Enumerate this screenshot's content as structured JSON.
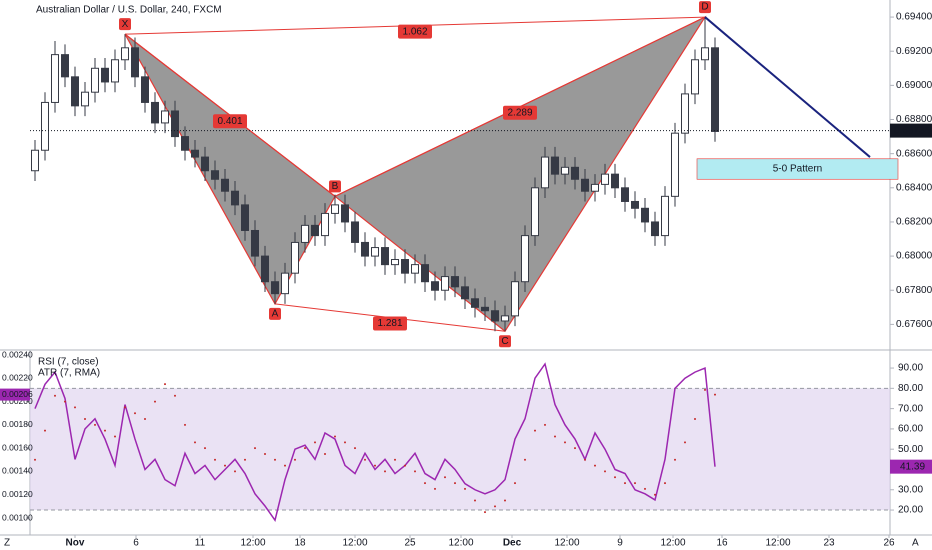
{
  "chart_data": [
    {
      "type": "candlestick",
      "title": "Australian Dollar / U.S. Dollar, 240, FXCM",
      "x": [
        0,
        1,
        2,
        3,
        4,
        5,
        6,
        7,
        8,
        9,
        10,
        11,
        12,
        13,
        14,
        15,
        16,
        17,
        18,
        19,
        20,
        21,
        22,
        23,
        24,
        25,
        26,
        27,
        28,
        29,
        30,
        31,
        32,
        33,
        34,
        35,
        36,
        37,
        38,
        39,
        40,
        41,
        42,
        43,
        44,
        45,
        46,
        47,
        48,
        49,
        50,
        51,
        52,
        53,
        54,
        55,
        56,
        57,
        58,
        59,
        60,
        61,
        62,
        63,
        64,
        65,
        66,
        67,
        68
      ],
      "open": [
        0.685,
        0.6862,
        0.689,
        0.6918,
        0.6905,
        0.6888,
        0.6896,
        0.691,
        0.6902,
        0.6915,
        0.6922,
        0.6905,
        0.689,
        0.6878,
        0.6885,
        0.687,
        0.6862,
        0.6858,
        0.685,
        0.6845,
        0.6838,
        0.683,
        0.6815,
        0.68,
        0.6785,
        0.6778,
        0.679,
        0.6808,
        0.6818,
        0.6812,
        0.6825,
        0.683,
        0.682,
        0.6808,
        0.68,
        0.6805,
        0.6795,
        0.6798,
        0.679,
        0.6795,
        0.6785,
        0.678,
        0.6788,
        0.6782,
        0.6775,
        0.677,
        0.6768,
        0.6762,
        0.6765,
        0.6785,
        0.6812,
        0.684,
        0.6858,
        0.6848,
        0.6852,
        0.6845,
        0.6838,
        0.6842,
        0.6848,
        0.684,
        0.6832,
        0.6828,
        0.682,
        0.6812,
        0.6835,
        0.6872,
        0.6895,
        0.6915,
        0.6922
      ],
      "high": [
        0.6868,
        0.6896,
        0.6926,
        0.6924,
        0.6911,
        0.6902,
        0.6916,
        0.6916,
        0.6921,
        0.693,
        0.6928,
        0.6911,
        0.6896,
        0.6891,
        0.6891,
        0.6876,
        0.6868,
        0.6864,
        0.6856,
        0.6851,
        0.6844,
        0.6836,
        0.6821,
        0.6806,
        0.6791,
        0.6796,
        0.6814,
        0.6824,
        0.6824,
        0.6831,
        0.6836,
        0.6836,
        0.6826,
        0.6814,
        0.6811,
        0.6811,
        0.6804,
        0.6804,
        0.6801,
        0.6801,
        0.6791,
        0.6794,
        0.6794,
        0.6788,
        0.6781,
        0.6776,
        0.6774,
        0.6771,
        0.6791,
        0.6818,
        0.6846,
        0.6864,
        0.6864,
        0.6858,
        0.6858,
        0.6851,
        0.6848,
        0.6854,
        0.6854,
        0.6846,
        0.6838,
        0.6834,
        0.6826,
        0.6841,
        0.6878,
        0.6901,
        0.6921,
        0.694,
        0.6928
      ],
      "low": [
        0.6844,
        0.6856,
        0.6884,
        0.6899,
        0.6882,
        0.6882,
        0.689,
        0.6896,
        0.6896,
        0.6909,
        0.6899,
        0.6884,
        0.6872,
        0.6872,
        0.6864,
        0.6856,
        0.6852,
        0.6844,
        0.6839,
        0.6832,
        0.6824,
        0.6809,
        0.6794,
        0.6779,
        0.6772,
        0.6772,
        0.6784,
        0.6802,
        0.6806,
        0.6806,
        0.6819,
        0.6814,
        0.6802,
        0.6794,
        0.6794,
        0.6789,
        0.6789,
        0.6784,
        0.6784,
        0.6779,
        0.6774,
        0.6774,
        0.6776,
        0.6769,
        0.6764,
        0.6762,
        0.6756,
        0.6756,
        0.6759,
        0.6779,
        0.6806,
        0.6834,
        0.6842,
        0.6842,
        0.6839,
        0.6832,
        0.6832,
        0.6836,
        0.6834,
        0.6826,
        0.6822,
        0.6814,
        0.6806,
        0.6806,
        0.6829,
        0.6866,
        0.6889,
        0.6909,
        0.6867
      ],
      "close": [
        0.6862,
        0.689,
        0.6918,
        0.6905,
        0.6888,
        0.6896,
        0.691,
        0.6902,
        0.6915,
        0.6922,
        0.6905,
        0.689,
        0.6878,
        0.6885,
        0.687,
        0.6862,
        0.6858,
        0.685,
        0.6845,
        0.6838,
        0.683,
        0.6815,
        0.68,
        0.6785,
        0.6778,
        0.679,
        0.6808,
        0.6818,
        0.6812,
        0.6825,
        0.683,
        0.682,
        0.6808,
        0.68,
        0.6805,
        0.6795,
        0.6798,
        0.679,
        0.6795,
        0.6785,
        0.678,
        0.6788,
        0.6782,
        0.6775,
        0.677,
        0.6768,
        0.6762,
        0.6765,
        0.6785,
        0.6812,
        0.684,
        0.6858,
        0.6848,
        0.6852,
        0.6845,
        0.6838,
        0.6842,
        0.6848,
        0.684,
        0.6832,
        0.6828,
        0.682,
        0.6812,
        0.6835,
        0.6872,
        0.6895,
        0.6915,
        0.6922,
        0.6873
      ],
      "up_color": "#ffffff",
      "down_color": "#363a45",
      "wick_color": "#363a45",
      "xlim": [
        -0.5,
        85.5
      ],
      "ylim": [
        0.6745,
        0.695
      ],
      "xticks": [
        {
          "value": 4,
          "label": "Nov"
        },
        {
          "value": 10.1,
          "label": "6"
        },
        {
          "value": 16.5,
          "label": "11"
        },
        {
          "value": 21.8,
          "label": "12:00"
        },
        {
          "value": 26.5,
          "label": "18"
        },
        {
          "value": 32,
          "label": "12:00"
        },
        {
          "value": 37.5,
          "label": "25"
        },
        {
          "value": 42.6,
          "label": "12:00"
        },
        {
          "value": 47.7,
          "label": "Dec"
        },
        {
          "value": 53.2,
          "label": "12:00"
        },
        {
          "value": 58.5,
          "label": "9"
        },
        {
          "value": 63.8,
          "label": "12:00"
        },
        {
          "value": 68.7,
          "label": "16"
        },
        {
          "value": 74.3,
          "label": "12:00"
        },
        {
          "value": 79.4,
          "label": "23"
        },
        {
          "value": 85.4,
          "label": "26"
        }
      ],
      "yticks": [
        {
          "value": 0.676,
          "label": "0.67600"
        },
        {
          "value": 0.678,
          "label": "0.67800"
        },
        {
          "value": 0.68,
          "label": "0.68000"
        },
        {
          "value": 0.682,
          "label": "0.68200"
        },
        {
          "value": 0.684,
          "label": "0.68400"
        },
        {
          "value": 0.686,
          "label": "0.68600"
        },
        {
          "value": 0.688,
          "label": "0.68800"
        },
        {
          "value": 0.69,
          "label": "0.69000"
        },
        {
          "value": 0.692,
          "label": "0.69200"
        },
        {
          "value": 0.694,
          "label": "0.69400"
        }
      ],
      "current": {
        "value": 0.68735,
        "label": "0.68735"
      },
      "pattern": {
        "color": "#e53935",
        "fill": "#808080",
        "points": [
          {
            "label": "X",
            "x": 9,
            "y": 0.693
          },
          {
            "label": "A",
            "x": 24,
            "y": 0.6772
          },
          {
            "label": "B",
            "x": 30,
            "y": 0.6835
          },
          {
            "label": "C",
            "x": 47,
            "y": 0.6756
          },
          {
            "label": "D",
            "x": 67,
            "y": 0.694
          }
        ],
        "ratios": [
          {
            "text": "1.062",
            "points": [
              0,
              4
            ]
          },
          {
            "text": "0.401",
            "points": [
              0,
              2
            ]
          },
          {
            "text": "2.289",
            "points": [
              2,
              4
            ]
          },
          {
            "text": "1.281",
            "points": [
              1,
              3
            ]
          }
        ]
      },
      "projection": {
        "color": "#1a237e",
        "x": [
          67,
          83.5
        ],
        "y": [
          0.694,
          0.6858
        ]
      },
      "box": {
        "text": "5-0 Pattern",
        "color": "#b2ebf2",
        "x": [
          66.2,
          86.3
        ],
        "y": [
          0.6857,
          0.6845
        ]
      }
    },
    {
      "type": "line",
      "x": [
        0,
        1,
        2,
        3,
        4,
        5,
        6,
        7,
        8,
        9,
        10,
        11,
        12,
        13,
        14,
        15,
        16,
        17,
        18,
        19,
        20,
        21,
        22,
        23,
        24,
        25,
        26,
        27,
        28,
        29,
        30,
        31,
        32,
        33,
        34,
        35,
        36,
        37,
        38,
        39,
        40,
        41,
        42,
        43,
        44,
        45,
        46,
        47,
        48,
        49,
        50,
        51,
        52,
        53,
        54,
        55,
        56,
        57,
        58,
        59,
        60,
        61,
        62,
        63,
        64,
        65,
        66,
        67,
        68
      ],
      "series": [
        {
          "name": "RSI (7, close)",
          "color": "#9c27b0",
          "values": [
            70,
            82,
            88,
            75,
            45,
            60,
            65,
            55,
            42,
            72,
            55,
            40,
            45,
            35,
            32,
            48,
            38,
            42,
            35,
            40,
            45,
            38,
            28,
            22,
            15,
            35,
            50,
            52,
            45,
            58,
            55,
            42,
            38,
            48,
            40,
            45,
            38,
            42,
            48,
            38,
            35,
            45,
            40,
            33,
            30,
            28,
            30,
            35,
            55,
            65,
            85,
            92,
            72,
            62,
            55,
            45,
            58,
            50,
            40,
            38,
            30,
            28,
            25,
            45,
            80,
            85,
            88,
            90,
            41.39
          ]
        },
        {
          "name": "ATR (7, RMA)",
          "color": "#c62828",
          "axis": "y2",
          "values": [
            0.0015,
            0.00175,
            0.00205,
            0.002,
            0.00195,
            0.00185,
            0.0018,
            0.00175,
            0.0017,
            0.00195,
            0.0019,
            0.00185,
            0.002,
            0.00215,
            0.00205,
            0.0018,
            0.00165,
            0.0016,
            0.0015,
            0.00145,
            0.0014,
            0.0015,
            0.0016,
            0.00155,
            0.0015,
            0.00145,
            0.0015,
            0.0016,
            0.00165,
            0.00155,
            0.0017,
            0.00165,
            0.0016,
            0.0015,
            0.00145,
            0.0014,
            0.0015,
            0.00145,
            0.0014,
            0.0013,
            0.00125,
            0.00135,
            0.0013,
            0.00125,
            0.00115,
            0.00105,
            0.0011,
            0.00115,
            0.0013,
            0.0015,
            0.00175,
            0.0018,
            0.0017,
            0.00165,
            0.0016,
            0.0015,
            0.00145,
            0.0014,
            0.00135,
            0.0013,
            0.0013,
            0.00125,
            0.0012,
            0.0013,
            0.0015,
            0.00165,
            0.00185,
            0.0021,
            0.00206
          ]
        }
      ],
      "band": [
        20,
        80
      ],
      "band_color": "#e1d5f0",
      "ylim": [
        7.7,
        98.9
      ],
      "yticks": [
        {
          "value": 20,
          "label": "20.00"
        },
        {
          "value": 30,
          "label": "30.00"
        },
        {
          "value": 40,
          "label": "40.00"
        },
        {
          "value": 50,
          "label": "50.00"
        },
        {
          "value": 60,
          "label": "60.00"
        },
        {
          "value": 70,
          "label": "70.00"
        },
        {
          "value": 80,
          "label": "80.00"
        },
        {
          "value": 90,
          "label": "90.00"
        }
      ],
      "y2lim": [
        0.000854,
        0.002443
      ],
      "y2ticks": [
        {
          "value": 0.001,
          "label": "0.00100"
        },
        {
          "value": 0.0012,
          "label": "0.00120"
        },
        {
          "value": 0.0014,
          "label": "0.00140"
        },
        {
          "value": 0.0016,
          "label": "0.00160"
        },
        {
          "value": 0.0018,
          "label": "0.00180"
        },
        {
          "value": 0.002,
          "label": "0.00200"
        },
        {
          "value": 0.0022,
          "label": "0.00220"
        },
        {
          "value": 0.0024,
          "label": "0.00240"
        }
      ]
    }
  ],
  "ui": {
    "left_corner": "Z",
    "right_corner": "A"
  }
}
